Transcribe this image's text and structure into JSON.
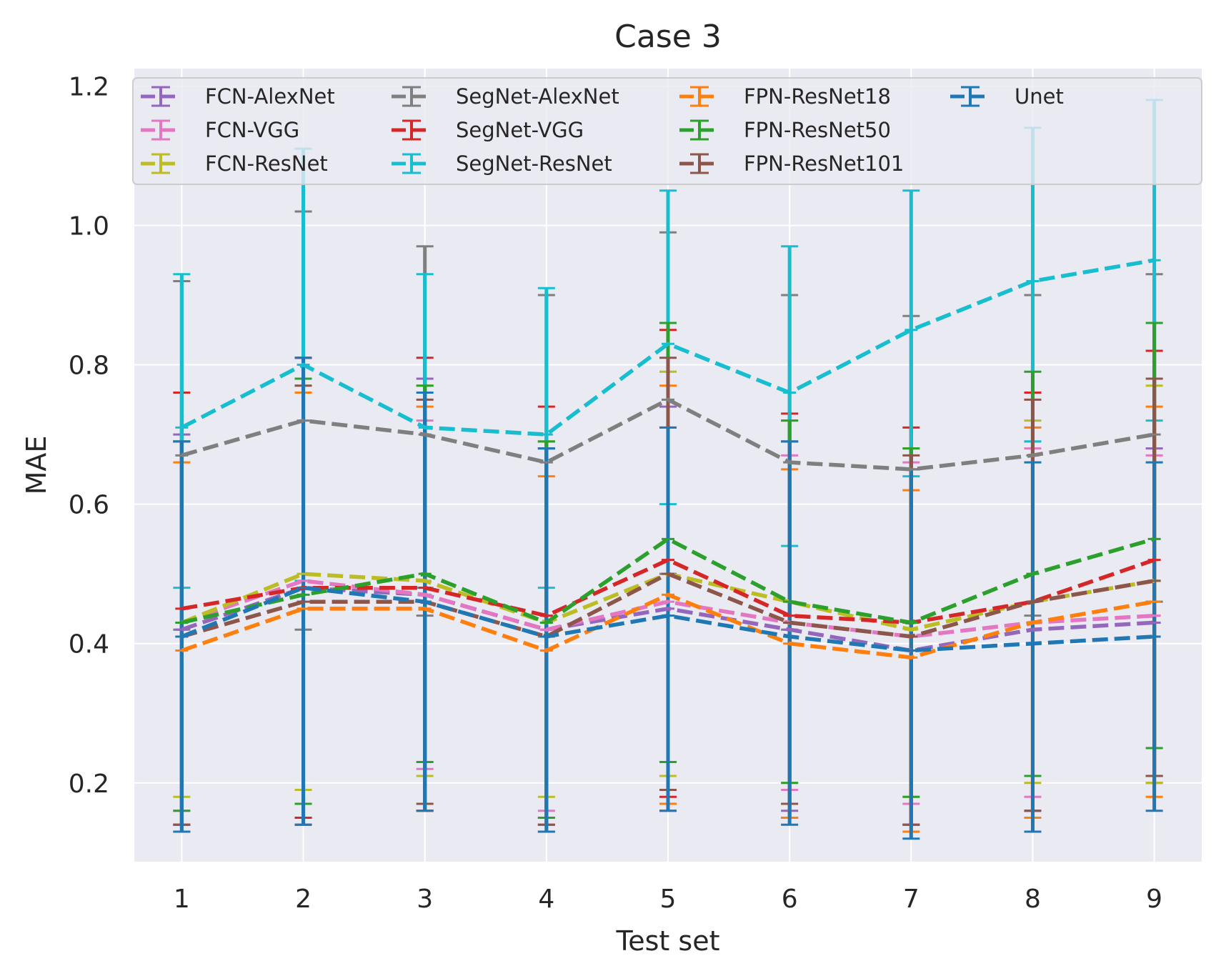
{
  "chart_data": {
    "type": "line",
    "title": "Case 3",
    "xlabel": "Test set",
    "ylabel": "MAE",
    "x": [
      1,
      2,
      3,
      4,
      5,
      6,
      7,
      8,
      9
    ],
    "xlim": [
      0.61,
      9.39
    ],
    "ylim": [
      0.087,
      1.225
    ],
    "yticks": [
      0.2,
      0.4,
      0.6,
      0.8,
      1.0,
      1.2
    ],
    "ytick_labels": [
      "0.2",
      "0.4",
      "0.6",
      "0.8",
      "1.0",
      "1.2"
    ],
    "grid": true,
    "legend_position": "top",
    "legend_columns": 4,
    "error_bars": true,
    "series": [
      {
        "name": "FCN-AlexNet",
        "color": "#9467bd",
        "values": [
          0.42,
          0.48,
          0.47,
          0.42,
          0.45,
          0.42,
          0.39,
          0.42,
          0.43
        ],
        "lower": [
          0.14,
          0.15,
          0.16,
          0.15,
          0.16,
          0.16,
          0.14,
          0.16,
          0.2
        ],
        "upper": [
          0.7,
          0.81,
          0.78,
          0.69,
          0.74,
          0.69,
          0.65,
          0.69,
          0.68
        ]
      },
      {
        "name": "FCN-VGG",
        "color": "#e377c2",
        "values": [
          0.43,
          0.49,
          0.47,
          0.42,
          0.46,
          0.43,
          0.41,
          0.43,
          0.44
        ],
        "lower": [
          0.16,
          0.17,
          0.22,
          0.16,
          0.21,
          0.19,
          0.17,
          0.18,
          0.21
        ],
        "upper": [
          0.69,
          0.81,
          0.72,
          0.68,
          0.71,
          0.67,
          0.66,
          0.68,
          0.67
        ]
      },
      {
        "name": "FCN-ResNet",
        "color": "#bcbd22",
        "values": [
          0.43,
          0.5,
          0.49,
          0.43,
          0.5,
          0.46,
          0.42,
          0.46,
          0.49
        ],
        "lower": [
          0.18,
          0.19,
          0.21,
          0.18,
          0.21,
          0.2,
          0.18,
          0.2,
          0.2
        ],
        "upper": [
          0.69,
          0.77,
          0.77,
          0.69,
          0.79,
          0.72,
          0.68,
          0.72,
          0.77
        ]
      },
      {
        "name": "SegNet-AlexNet",
        "color": "#7f7f7f",
        "values": [
          0.67,
          0.72,
          0.7,
          0.66,
          0.75,
          0.66,
          0.65,
          0.67,
          0.7
        ],
        "lower": [
          0.42,
          0.42,
          0.44,
          0.41,
          0.5,
          0.42,
          0.43,
          0.44,
          0.46
        ],
        "upper": [
          0.92,
          1.02,
          0.97,
          0.9,
          0.99,
          0.9,
          0.87,
          0.9,
          0.93
        ]
      },
      {
        "name": "SegNet-VGG",
        "color": "#d62728",
        "values": [
          0.45,
          0.48,
          0.48,
          0.44,
          0.52,
          0.44,
          0.43,
          0.46,
          0.52
        ],
        "lower": [
          0.14,
          0.15,
          0.16,
          0.14,
          0.18,
          0.15,
          0.14,
          0.16,
          0.21
        ],
        "upper": [
          0.76,
          0.81,
          0.81,
          0.74,
          0.85,
          0.73,
          0.71,
          0.76,
          0.82
        ]
      },
      {
        "name": "SegNet-ResNet",
        "color": "#17becf",
        "values": [
          0.71,
          0.8,
          0.71,
          0.7,
          0.83,
          0.76,
          0.85,
          0.92,
          0.95
        ],
        "lower": [
          0.48,
          0.49,
          0.48,
          0.48,
          0.6,
          0.54,
          0.64,
          0.69,
          0.72
        ],
        "upper": [
          0.93,
          1.11,
          0.93,
          0.91,
          1.05,
          0.97,
          1.05,
          1.14,
          1.18
        ]
      },
      {
        "name": "FPN-ResNet18",
        "color": "#ff7f0e",
        "values": [
          0.39,
          0.45,
          0.45,
          0.39,
          0.47,
          0.4,
          0.38,
          0.43,
          0.46
        ],
        "lower": [
          0.13,
          0.14,
          0.16,
          0.13,
          0.17,
          0.15,
          0.13,
          0.15,
          0.18
        ],
        "upper": [
          0.66,
          0.76,
          0.74,
          0.64,
          0.77,
          0.65,
          0.62,
          0.71,
          0.74
        ]
      },
      {
        "name": "FPN-ResNet50",
        "color": "#2ca02c",
        "values": [
          0.43,
          0.47,
          0.5,
          0.43,
          0.55,
          0.46,
          0.43,
          0.5,
          0.55
        ],
        "lower": [
          0.16,
          0.17,
          0.23,
          0.15,
          0.23,
          0.2,
          0.18,
          0.21,
          0.25
        ],
        "upper": [
          0.69,
          0.78,
          0.77,
          0.69,
          0.86,
          0.72,
          0.68,
          0.79,
          0.86
        ]
      },
      {
        "name": "FPN-ResNet101",
        "color": "#8c564b",
        "values": [
          0.41,
          0.46,
          0.46,
          0.41,
          0.5,
          0.43,
          0.41,
          0.46,
          0.49
        ],
        "lower": [
          0.14,
          0.14,
          0.17,
          0.14,
          0.19,
          0.17,
          0.14,
          0.16,
          0.21
        ],
        "upper": [
          0.69,
          0.77,
          0.75,
          0.68,
          0.81,
          0.69,
          0.67,
          0.75,
          0.78
        ]
      },
      {
        "name": "Unet",
        "color": "#1f77b4",
        "values": [
          0.41,
          0.48,
          0.46,
          0.41,
          0.44,
          0.41,
          0.39,
          0.4,
          0.41
        ],
        "lower": [
          0.13,
          0.14,
          0.16,
          0.13,
          0.16,
          0.14,
          0.12,
          0.13,
          0.16
        ],
        "upper": [
          0.69,
          0.81,
          0.76,
          0.68,
          0.71,
          0.69,
          0.65,
          0.66,
          0.66
        ]
      }
    ]
  }
}
